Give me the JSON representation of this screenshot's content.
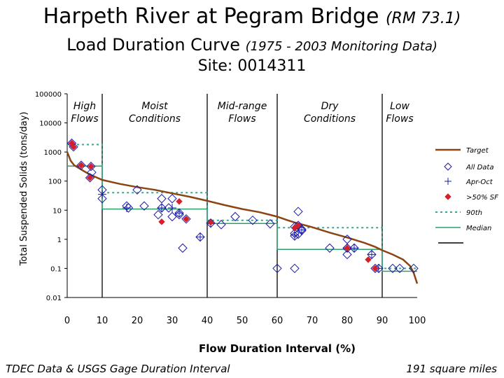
{
  "title": {
    "main": "Harpeth River at Pegram Bridge",
    "rm": "(RM 73.1)",
    "sub": "Load Duration Curve",
    "years": "(1975 - 2003 Monitoring Data)",
    "site": "Site:  0014311"
  },
  "footer": {
    "left": "TDEC Data & USGS Gage Duration Interval",
    "right": "191 square miles"
  },
  "colors": {
    "target": "#8b4513",
    "all_data": "#1a1aa6",
    "exceed": "#d61f2a",
    "p90": "#3aa690",
    "median": "#2aa06a"
  },
  "chart_data": {
    "type": "scatter",
    "xlabel": "Flow Duration Interval (%)",
    "ylabel": "Total Suspended Solids (tons/day)",
    "xlim": [
      0,
      100
    ],
    "ylim": [
      0.01,
      100000
    ],
    "yscale": "log",
    "xticks": [
      "0",
      "10",
      "20",
      "30",
      "40",
      "50",
      "60",
      "70",
      "80",
      "90",
      "100"
    ],
    "yticks": [
      "100000",
      "10000",
      "1000",
      "100",
      "10",
      "1",
      "0.1",
      "0.01"
    ],
    "dividers": [
      10,
      40,
      60,
      90
    ],
    "zones": [
      "High Flows",
      "Moist Conditions",
      "Mid-range Flows",
      "Dry Conditions",
      "Low Flows"
    ],
    "legend": [
      "Target",
      "All Data",
      "Apr-Oct",
      ">50% SF",
      "90th",
      "Median"
    ],
    "legend_position": "right",
    "target": [
      [
        0,
        1000
      ],
      [
        1,
        500
      ],
      [
        2,
        350
      ],
      [
        4,
        250
      ],
      [
        6,
        180
      ],
      [
        8,
        140
      ],
      [
        10,
        110
      ],
      [
        15,
        80
      ],
      [
        20,
        62
      ],
      [
        25,
        50
      ],
      [
        30,
        38
      ],
      [
        35,
        29
      ],
      [
        40,
        21
      ],
      [
        45,
        15
      ],
      [
        50,
        11
      ],
      [
        55,
        8.5
      ],
      [
        60,
        6
      ],
      [
        63,
        4.5
      ],
      [
        65,
        3.8
      ],
      [
        70,
        2.6
      ],
      [
        75,
        1.7
      ],
      [
        80,
        1.15
      ],
      [
        85,
        0.75
      ],
      [
        88,
        0.55
      ],
      [
        90,
        0.42
      ],
      [
        93,
        0.3
      ],
      [
        96,
        0.2
      ],
      [
        98,
        0.12
      ],
      [
        99,
        0.07
      ],
      [
        100,
        0.03
      ]
    ],
    "all_data": [
      [
        1.3,
        2000
      ],
      [
        1.8,
        1500
      ],
      [
        4,
        350
      ],
      [
        6.5,
        130
      ],
      [
        6.8,
        320
      ],
      [
        7,
        200
      ],
      [
        10,
        50
      ],
      [
        10,
        25
      ],
      [
        17,
        14
      ],
      [
        17.5,
        12
      ],
      [
        20,
        50
      ],
      [
        22,
        14
      ],
      [
        26,
        7
      ],
      [
        27,
        25
      ],
      [
        27,
        12
      ],
      [
        29,
        12
      ],
      [
        30,
        6
      ],
      [
        30,
        25
      ],
      [
        32,
        7
      ],
      [
        32,
        8
      ],
      [
        33,
        0.5
      ],
      [
        34,
        5
      ],
      [
        38,
        1.2
      ],
      [
        41,
        3.6
      ],
      [
        44,
        3.2
      ],
      [
        48,
        6
      ],
      [
        53,
        4.5
      ],
      [
        58,
        3.4
      ],
      [
        60,
        0.1
      ],
      [
        65,
        2.7
      ],
      [
        65,
        1.6
      ],
      [
        65,
        1.3
      ],
      [
        66,
        1.5
      ],
      [
        66,
        9
      ],
      [
        66,
        3
      ],
      [
        67,
        2.2
      ],
      [
        67,
        2
      ],
      [
        65,
        0.1
      ],
      [
        75,
        0.5
      ],
      [
        80,
        1
      ],
      [
        80,
        0.5
      ],
      [
        80,
        0.3
      ],
      [
        82,
        0.5
      ],
      [
        87,
        0.3
      ],
      [
        88,
        0.1
      ],
      [
        89,
        0.1
      ],
      [
        93,
        0.1
      ],
      [
        95,
        0.1
      ],
      [
        99,
        0.1
      ]
    ],
    "apr_oct": [
      [
        10,
        35
      ],
      [
        17,
        12
      ],
      [
        27,
        12
      ],
      [
        30,
        12
      ],
      [
        32,
        8
      ],
      [
        38,
        1.2
      ],
      [
        41,
        3.5
      ],
      [
        65,
        1.4
      ],
      [
        67,
        2.1
      ],
      [
        80,
        0.5
      ],
      [
        82,
        0.5
      ],
      [
        87,
        0.3
      ],
      [
        89,
        0.1
      ]
    ],
    "exceed_sf": [
      [
        1.3,
        2000
      ],
      [
        1.8,
        1500
      ],
      [
        4,
        350
      ],
      [
        6.8,
        320
      ],
      [
        6.5,
        130
      ],
      [
        27,
        4
      ],
      [
        32,
        20
      ],
      [
        34,
        5
      ],
      [
        41,
        3.8
      ],
      [
        65,
        2.5
      ],
      [
        66,
        3
      ],
      [
        80,
        0.5
      ],
      [
        86,
        0.2
      ],
      [
        88,
        0.1
      ]
    ],
    "p90": [
      [
        0,
        1800
      ],
      [
        5,
        1800
      ],
      [
        10,
        1800
      ],
      [
        10,
        40
      ],
      [
        40,
        40
      ],
      [
        40,
        4.5
      ],
      [
        60,
        4.5
      ],
      [
        60,
        2.5
      ],
      [
        90,
        2.5
      ],
      [
        90,
        0.1
      ],
      [
        100,
        0.1
      ]
    ],
    "median": [
      [
        0,
        330
      ],
      [
        10,
        330
      ],
      [
        10,
        11
      ],
      [
        40,
        11
      ],
      [
        40,
        3.5
      ],
      [
        60,
        3.5
      ],
      [
        60,
        0.45
      ],
      [
        90,
        0.45
      ],
      [
        90,
        0.08
      ],
      [
        100,
        0.08
      ]
    ]
  }
}
